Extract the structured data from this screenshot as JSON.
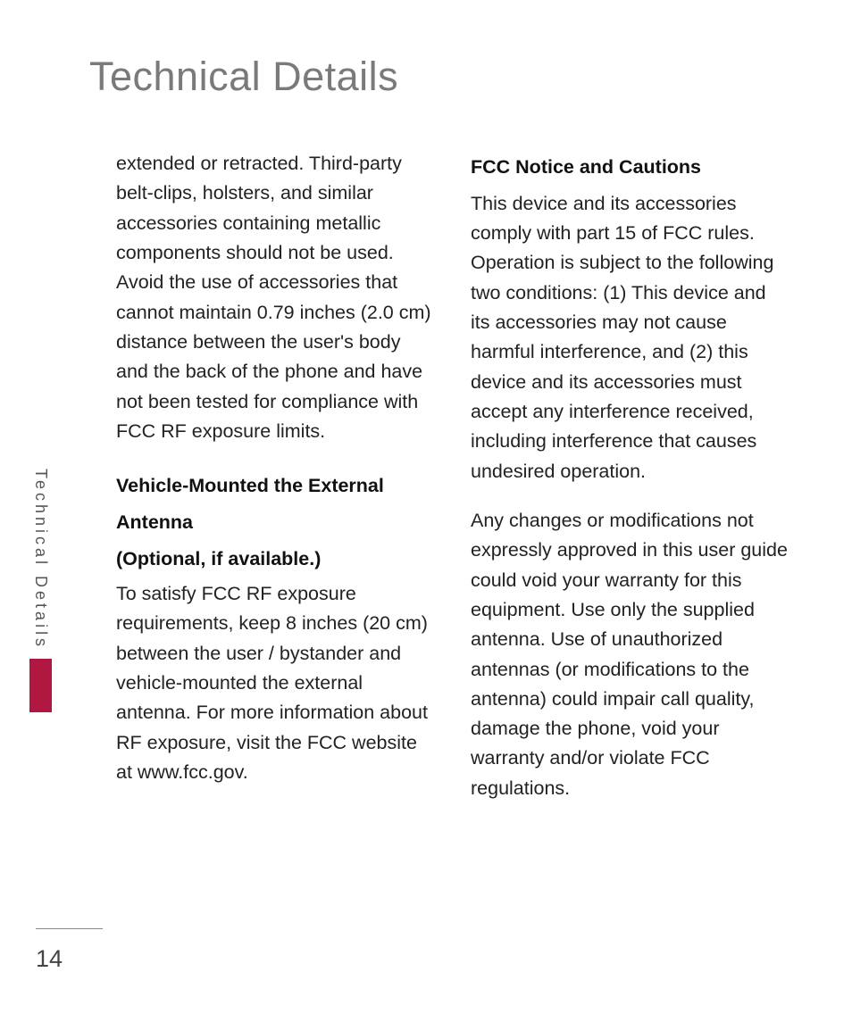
{
  "title": "Technical Details",
  "sidebar": {
    "label": "Technical Details",
    "accent_color": "#b01842"
  },
  "left_column": {
    "para1": "extended or retracted. Third-party belt-clips, holsters, and similar accessories containing metallic components should not be used. Avoid the use of accessories that cannot maintain 0.79 inches (2.0 cm) distance between the user's body and the back of the phone and have not been tested for compliance with FCC RF exposure limits.",
    "heading1": "Vehicle-Mounted the External Antenna",
    "subheading1": "(Optional, if available.)",
    "para2": "To satisfy FCC RF exposure requirements, keep 8 inches (20 cm) between the user / bystander and vehicle-mounted the external antenna. For more information about RF exposure, visit the FCC website at www.fcc.gov."
  },
  "right_column": {
    "heading1": "FCC Notice and Cautions",
    "para1": "This device and its accessories comply with part 15 of FCC rules. Operation is subject to the following two conditions: (1) This device and its accessories may not cause harmful interference, and (2) this device and its accessories must accept any interference received, including interference that causes undesired operation.",
    "para2": "Any changes or modifications not expressly approved in this user guide could void your warranty for this equipment.  Use only the supplied antenna. Use of unauthorized antennas (or modifications to the antenna) could impair call quality, damage the phone, void your warranty and/or violate FCC regulations."
  },
  "page_number": "14"
}
